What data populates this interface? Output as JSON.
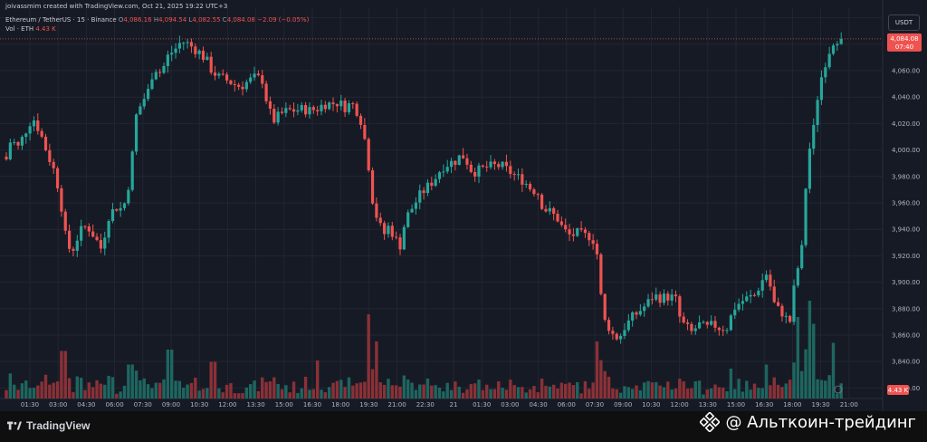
{
  "header": {
    "credit": "joivassmim created with TradingView.com, Oct 21, 2025 19:22 UTC+3",
    "symbol": "Ethereum / TetherUS · 15 · Binance",
    "ohlc": {
      "o_label": "O",
      "o": "4,086.16",
      "h_label": "H",
      "h": "4,094.54",
      "l_label": "L",
      "l": "4,082.55",
      "c_label": "C",
      "c": "4,084.08",
      "change": "−2.09 (−0.05%)"
    },
    "vol_label": "Vol · ETH",
    "vol_value": "4.43 K"
  },
  "currency_button": "USDT",
  "price_tag": {
    "price": "4,084.08",
    "countdown": "07:40"
  },
  "vol_tag": "4.43 K",
  "footer": {
    "logo_text": "TradingView",
    "watermark": "@ Альткоин-трейдинг"
  },
  "colors": {
    "background": "#161a25",
    "up": "#26a69a",
    "down": "#ef5350",
    "up_vol": "#1e6660",
    "down_vol": "#8a3137",
    "grid": "#232632"
  },
  "chart_data": {
    "type": "candlestick",
    "symbol": "ETHUSDT",
    "timeframe": "15",
    "exchange": "Binance",
    "y_ticks": [
      3820,
      3840,
      3860,
      3880,
      3900,
      3920,
      3940,
      3960,
      3980,
      4000,
      4020,
      4040,
      4060,
      4080,
      4100
    ],
    "y_tick_labels": [
      "3,820.00",
      "3,840.00",
      "3,860.00",
      "3,880.00",
      "3,900.00",
      "3,920.00",
      "3,940.00",
      "3,960.00",
      "3,980.00",
      "4,000.00",
      "4,020.00",
      "4,040.00",
      "4,060.00",
      "4,080.00",
      "4,100.00"
    ],
    "ylim": [
      3812,
      4108
    ],
    "x_tick_labels": [
      "01:30",
      "03:00",
      "04:30",
      "06:00",
      "07:30",
      "09:00",
      "10:30",
      "12:00",
      "13:30",
      "15:00",
      "16:30",
      "18:00",
      "19:30",
      "21:00",
      "22:30",
      "21",
      "01:30",
      "03:00",
      "04:30",
      "06:00",
      "07:30",
      "09:00",
      "10:30",
      "12:00",
      "13:30",
      "15:00",
      "16:30",
      "18:00",
      "19:30",
      "21:00"
    ],
    "last_price": 4084.08,
    "points": [
      [
        0,
        3993
      ],
      [
        6,
        3990
      ],
      [
        12,
        4008
      ],
      [
        20,
        4002
      ],
      [
        28,
        4014
      ],
      [
        36,
        4025
      ],
      [
        44,
        4014
      ],
      [
        52,
        3998
      ],
      [
        60,
        3984
      ],
      [
        66,
        3967
      ],
      [
        70,
        3946
      ],
      [
        74,
        3927
      ],
      [
        80,
        3924
      ],
      [
        88,
        3938
      ],
      [
        96,
        3943
      ],
      [
        104,
        3935
      ],
      [
        112,
        3925
      ],
      [
        120,
        3950
      ],
      [
        128,
        3957
      ],
      [
        136,
        3955
      ],
      [
        144,
        3980
      ],
      [
        150,
        4025
      ],
      [
        156,
        4035
      ],
      [
        164,
        4045
      ],
      [
        170,
        4063
      ],
      [
        178,
        4058
      ],
      [
        186,
        4072
      ],
      [
        192,
        4075
      ],
      [
        200,
        4082
      ],
      [
        206,
        4081
      ],
      [
        212,
        4078
      ],
      [
        220,
        4074
      ],
      [
        228,
        4068
      ],
      [
        234,
        4060
      ],
      [
        242,
        4055
      ],
      [
        250,
        4053
      ],
      [
        258,
        4050
      ],
      [
        266,
        4048
      ],
      [
        274,
        4052
      ],
      [
        282,
        4055
      ],
      [
        290,
        4053
      ],
      [
        296,
        4032
      ],
      [
        302,
        4022
      ],
      [
        310,
        4027
      ],
      [
        318,
        4030
      ],
      [
        326,
        4030
      ],
      [
        334,
        4031
      ],
      [
        342,
        4030
      ],
      [
        350,
        4031
      ],
      [
        358,
        4035
      ],
      [
        366,
        4035
      ],
      [
        374,
        4036
      ],
      [
        382,
        4032
      ],
      [
        388,
        4036
      ],
      [
        394,
        4030
      ],
      [
        400,
        4020
      ],
      [
        406,
        3995
      ],
      [
        412,
        3960
      ],
      [
        418,
        3945
      ],
      [
        424,
        3936
      ],
      [
        430,
        3943
      ],
      [
        436,
        3933
      ],
      [
        442,
        3928
      ],
      [
        448,
        3948
      ],
      [
        456,
        3957
      ],
      [
        464,
        3966
      ],
      [
        472,
        3972
      ],
      [
        480,
        3978
      ],
      [
        488,
        3987
      ],
      [
        496,
        3990
      ],
      [
        504,
        3992
      ],
      [
        510,
        3997
      ],
      [
        516,
        3991
      ],
      [
        522,
        3983
      ],
      [
        530,
        3985
      ],
      [
        538,
        3987
      ],
      [
        546,
        3988
      ],
      [
        554,
        3988
      ],
      [
        562,
        3984
      ],
      [
        570,
        3980
      ],
      [
        578,
        3977
      ],
      [
        586,
        3971
      ],
      [
        594,
        3968
      ],
      [
        600,
        3956
      ],
      [
        608,
        3953
      ],
      [
        616,
        3948
      ],
      [
        622,
        3940
      ],
      [
        630,
        3935
      ],
      [
        638,
        3937
      ],
      [
        646,
        3935
      ],
      [
        654,
        3935
      ],
      [
        660,
        3920
      ],
      [
        666,
        3872
      ],
      [
        672,
        3867
      ],
      [
        678,
        3859
      ],
      [
        684,
        3858
      ],
      [
        690,
        3866
      ],
      [
        698,
        3873
      ],
      [
        706,
        3878
      ],
      [
        714,
        3883
      ],
      [
        722,
        3890
      ],
      [
        730,
        3888
      ],
      [
        738,
        3889
      ],
      [
        746,
        3888
      ],
      [
        752,
        3870
      ],
      [
        758,
        3866
      ],
      [
        764,
        3862
      ],
      [
        772,
        3868
      ],
      [
        780,
        3865
      ],
      [
        788,
        3868
      ],
      [
        796,
        3865
      ],
      [
        804,
        3866
      ],
      [
        810,
        3880
      ],
      [
        818,
        3885
      ],
      [
        826,
        3888
      ],
      [
        834,
        3890
      ],
      [
        840,
        3899
      ],
      [
        848,
        3908
      ],
      [
        854,
        3885
      ],
      [
        860,
        3879
      ],
      [
        866,
        3876
      ],
      [
        872,
        3867
      ],
      [
        878,
        3900
      ],
      [
        886,
        3926
      ],
      [
        892,
        3994
      ],
      [
        898,
        4012
      ],
      [
        904,
        4045
      ],
      [
        910,
        4063
      ],
      [
        916,
        4075
      ],
      [
        922,
        4085
      ],
      [
        925,
        4084.08
      ]
    ],
    "volume_scale_label": "4.43 K",
    "volume_spikes": [
      [
        70,
        0.35
      ],
      [
        188,
        0.36
      ],
      [
        406,
        0.62
      ],
      [
        416,
        0.42
      ],
      [
        660,
        0.42
      ],
      [
        894,
        0.72
      ],
      [
        920,
        0.41
      ],
      [
        900,
        0.55
      ],
      [
        880,
        0.6
      ],
      [
        846,
        0.25
      ],
      [
        808,
        0.22
      ],
      [
        350,
        0.28
      ],
      [
        236,
        0.27
      ],
      [
        144,
        0.25
      ]
    ]
  }
}
